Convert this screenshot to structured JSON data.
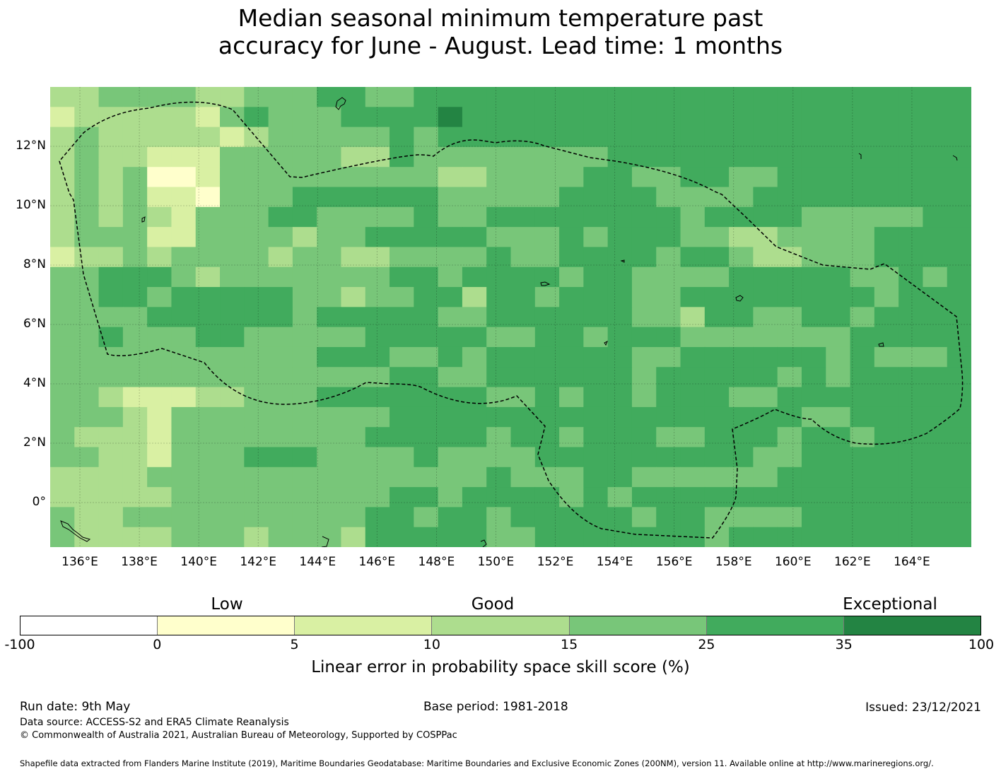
{
  "title_lines": [
    "Median seasonal minimum temperature past",
    "accuracy for June - August. Lead time: 1 months"
  ],
  "map": {
    "lon_range": [
      135,
      166
    ],
    "lat_range": [
      -1.5,
      14
    ],
    "cell_size_deg": 0.833,
    "lat_ticks": [
      {
        "value": 12,
        "label": "12°N"
      },
      {
        "value": 10,
        "label": "10°N"
      },
      {
        "value": 8,
        "label": "8°N"
      },
      {
        "value": 6,
        "label": "6°N"
      },
      {
        "value": 4,
        "label": "4°N"
      },
      {
        "value": 2,
        "label": "2°N"
      },
      {
        "value": 0,
        "label": "0°"
      }
    ],
    "lon_ticks": [
      {
        "value": 136,
        "label": "136°E"
      },
      {
        "value": 138,
        "label": "138°E"
      },
      {
        "value": 140,
        "label": "140°E"
      },
      {
        "value": 142,
        "label": "142°E"
      },
      {
        "value": 144,
        "label": "144°E"
      },
      {
        "value": 146,
        "label": "146°E"
      },
      {
        "value": 148,
        "label": "148°E"
      },
      {
        "value": 150,
        "label": "150°E"
      },
      {
        "value": 152,
        "label": "152°E"
      },
      {
        "value": 154,
        "label": "154°E"
      },
      {
        "value": 156,
        "label": "156°E"
      },
      {
        "value": 158,
        "label": "158°E"
      },
      {
        "value": 160,
        "label": "160°E"
      },
      {
        "value": 162,
        "label": "162°E"
      },
      {
        "value": 164,
        "label": "164°E"
      }
    ],
    "grid_rows": [
      "33444433444554455555555555555555555555",
      "23333324544455556555555555555555555555",
      "34333332344444545555555555555555555555",
      "34332224444433544444444555555555555555",
      "34341124444444443344445544554455555555",
      "34342214445555554444455554444555555555",
      "34343244455444454455555555455554444455",
      "34442244443445555544454555443344445555",
      "23343444434433444454455554554334445555",
      "44555434444444554555545544445555544545",
      "44554555554434455355455544555555554555",
      "44445555554555554455555544355445545555",
      "44544455444445555544554555444444455555",
      "44444444444555445455555544555555454445",
      "44444444444444554455555545555545455555",
      "44322233444555555544545545554455555555",
      "44432444444444555555555555555554455555",
      "43332444444445555545545554455545545555",
      "44332444555444454444555555555445555555",
      "33334444444444444454445544444455555555",
      "33333444444444554555545455555555555555",
      "43344444444445545545555545544445555555",
      "43333444344435555544555555545555555555"
    ]
  },
  "colorbar": {
    "ticks": [
      "-100",
      "0",
      "5",
      "10",
      "15",
      "25",
      "35",
      "100"
    ],
    "colors": [
      "#ffffff",
      "#ffffcc",
      "#d9f0a3",
      "#addd8e",
      "#78c679",
      "#41ab5d",
      "#238443"
    ],
    "category_labels": [
      "Low",
      "Good",
      "Exceptional"
    ],
    "title": "Linear error in probability space skill score (%)"
  },
  "footer": {
    "run_date": "Run date: 9th May",
    "base_period": "Base period: 1981-2018",
    "issued": "Issued: 23/12/2021",
    "data_source": "Data source: ACCESS-S2 and ERA5 Climate Reanalysis",
    "copyright": "© Commonwealth of Australia 2021, Australian Bureau of Meteorology, Supported by COSPPac",
    "shapefile": "Shapefile data extracted from Flanders Marine Institute (2019), Maritime Boundaries Geodatabase: Maritime Boundaries and Exclusive Economic Zones (200NM), version 11. Available online at http://www.marineregions.org/."
  }
}
